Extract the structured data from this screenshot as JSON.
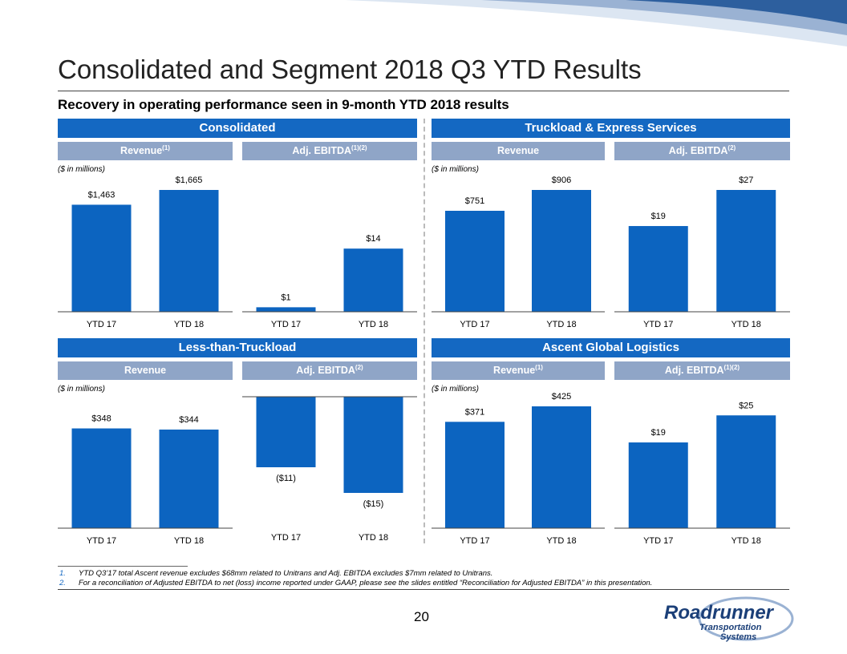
{
  "title": "Consolidated and Segment 2018 Q3 YTD Results",
  "subtitle": "Recovery in operating performance seen in 9-month YTD 2018 results",
  "units_label": "($ in millions)",
  "colors": {
    "bar": "#0c64c0",
    "header": "#1468c2",
    "subheader": "#8fa5c7"
  },
  "segments": {
    "consolidated": {
      "name": "Consolidated"
    },
    "tes": {
      "name": "Truckload & Express Services"
    },
    "ltl": {
      "name": "Less-than-Truckload"
    },
    "ascent": {
      "name": "Ascent Global Logistics"
    }
  },
  "subheaders": {
    "cons_rev": {
      "label": "Revenue",
      "sup": "(1)"
    },
    "cons_ebitda": {
      "label": "Adj. EBITDA",
      "sup": "(1)(2)"
    },
    "tes_rev": {
      "label": "Revenue",
      "sup": ""
    },
    "tes_ebitda": {
      "label": "Adj. EBITDA",
      "sup": "(2)"
    },
    "ltl_rev": {
      "label": "Revenue",
      "sup": ""
    },
    "ltl_ebitda": {
      "label": "Adj. EBITDA",
      "sup": "(2)"
    },
    "asc_rev": {
      "label": "Revenue",
      "sup": "(1)"
    },
    "asc_ebitda": {
      "label": "Adj. EBITDA",
      "sup": "(1)(2)"
    }
  },
  "chart_data": [
    {
      "id": "cons_rev",
      "type": "bar",
      "title": "Consolidated Revenue",
      "categories": [
        "YTD 17",
        "YTD 18"
      ],
      "values": [
        1463,
        1665
      ],
      "labels": [
        "$1,463",
        "$1,665"
      ],
      "ylim": [
        0,
        1665
      ]
    },
    {
      "id": "cons_ebitda",
      "type": "bar",
      "title": "Consolidated Adj. EBITDA",
      "categories": [
        "YTD 17",
        "YTD 18"
      ],
      "values": [
        1,
        14
      ],
      "labels": [
        "$1",
        "$14"
      ],
      "ylim": [
        0,
        27
      ]
    },
    {
      "id": "tes_rev",
      "type": "bar",
      "title": "Truckload & Express Services Revenue",
      "categories": [
        "YTD 17",
        "YTD 18"
      ],
      "values": [
        751,
        906
      ],
      "labels": [
        "$751",
        "$906"
      ],
      "ylim": [
        0,
        906
      ]
    },
    {
      "id": "tes_ebitda",
      "type": "bar",
      "title": "Truckload & Express Services Adj. EBITDA",
      "categories": [
        "YTD 17",
        "YTD 18"
      ],
      "values": [
        19,
        27
      ],
      "labels": [
        "$19",
        "$27"
      ],
      "ylim": [
        0,
        27
      ]
    },
    {
      "id": "ltl_rev",
      "type": "bar",
      "title": "Less-than-Truckload Revenue",
      "categories": [
        "YTD 17",
        "YTD 18"
      ],
      "values": [
        348,
        344
      ],
      "labels": [
        "$348",
        "$344"
      ],
      "ylim": [
        0,
        425
      ]
    },
    {
      "id": "ltl_ebitda",
      "type": "bar",
      "title": "Less-than-Truckload Adj. EBITDA",
      "categories": [
        "YTD 17",
        "YTD 18"
      ],
      "values": [
        -11,
        -15
      ],
      "labels": [
        "($11)",
        "($15)"
      ],
      "ylim": [
        -15,
        0
      ]
    },
    {
      "id": "asc_rev",
      "type": "bar",
      "title": "Ascent Global Logistics Revenue",
      "categories": [
        "YTD 17",
        "YTD 18"
      ],
      "values": [
        371,
        425
      ],
      "labels": [
        "$371",
        "$425"
      ],
      "ylim": [
        0,
        425
      ]
    },
    {
      "id": "asc_ebitda",
      "type": "bar",
      "title": "Ascent Global Logistics Adj. EBITDA",
      "categories": [
        "YTD 17",
        "YTD 18"
      ],
      "values": [
        19,
        25
      ],
      "labels": [
        "$19",
        "$25"
      ],
      "ylim": [
        0,
        27
      ]
    }
  ],
  "footnotes": [
    {
      "num": "1.",
      "text": "YTD Q3’17 total Ascent revenue excludes $68mm related to Unitrans and Adj. EBITDA excludes $7mm related to Unitrans."
    },
    {
      "num": "2.",
      "text": "For a reconciliation of Adjusted EBITDA to net (loss) income reported under GAAP, please see the slides entitled “Reconciliation for Adjusted EBITDA” in this presentation."
    }
  ],
  "page_number": "20",
  "logo": {
    "line1": "Roadrunner",
    "line2": "Transportation",
    "line3": "Systems"
  }
}
